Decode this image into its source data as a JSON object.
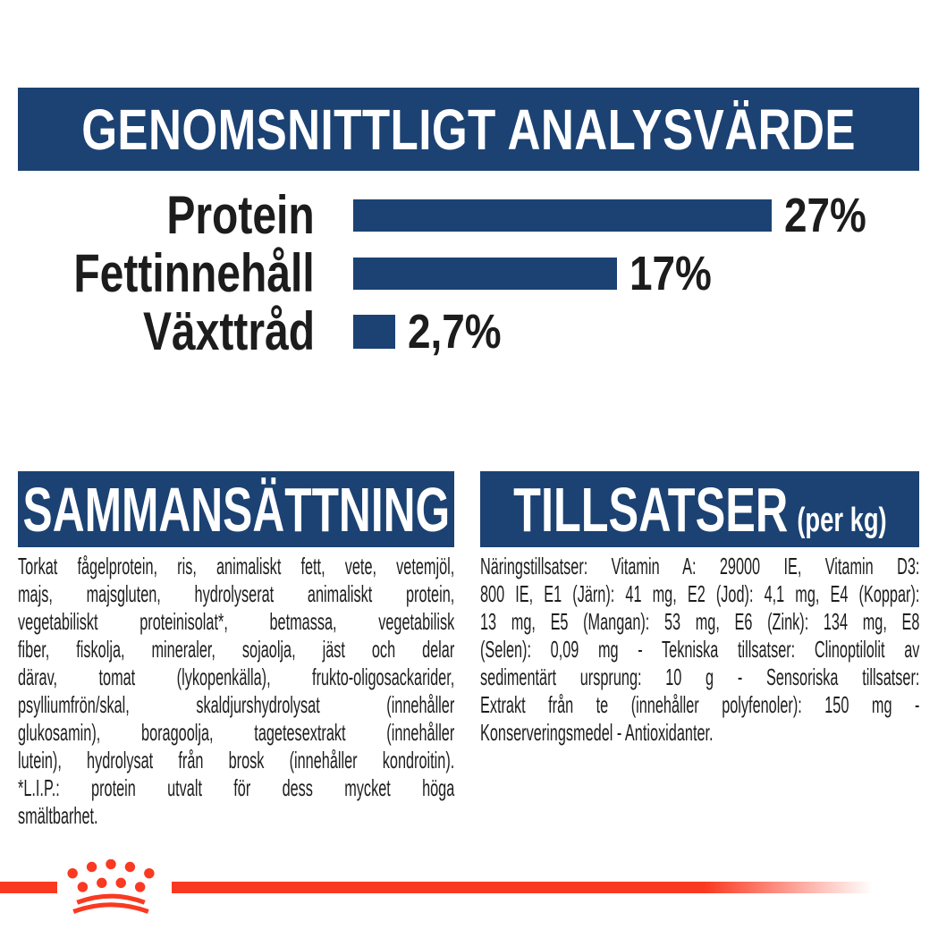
{
  "colors": {
    "navy": "#1B4273",
    "red": "#FA3921",
    "ink": "#1C1C1C"
  },
  "header": {
    "title": "GENOMSNITTLIGT ANALYSVÄRDE"
  },
  "chart_data": {
    "type": "bar",
    "orientation": "horizontal",
    "title": "GENOMSNITTLIGT ANALYSVÄRDE",
    "unit": "%",
    "categories": [
      "Protein",
      "Fettinnehåll",
      "Växttråd"
    ],
    "values": [
      27,
      17,
      2.7
    ],
    "value_labels": [
      "27%",
      "17%",
      "2,7%"
    ],
    "xlim": [
      0,
      27
    ],
    "grid": false,
    "legend": false,
    "bar_color": "#1B4273"
  },
  "sections": {
    "composition": {
      "title": "SAMMANSÄTTNING",
      "lines": [
        "Torkat fågelprotein, ris, animaliskt fett, vete, vetemjöl,",
        "majs, majsgluten, hydrolyserat animaliskt protein,",
        "vegetabiliskt proteinisolat*, betmassa, vegetabilisk",
        "fiber, fiskolja, mineraler, sojaolja, jäst och delar",
        "därav, tomat (lykopenkälla), frukto-oligosackarider,",
        "psylliumfrön/skal, skaldjurshydrolysat (innehåller",
        "glukosamin), boragoolja, tagetesextrakt (innehåller",
        "lutein), hydrolysat från brosk (innehåller kondroitin).",
        "*L.I.P.: protein utvalt för dess mycket höga",
        "smältbarhet."
      ]
    },
    "additives": {
      "title": "TILLSATSER",
      "title_suffix": "(per kg)",
      "lines": [
        "Näringstillsatser: Vitamin A: 29000 IE, Vitamin D3:",
        "800 IE, E1 (Järn): 41 mg, E2 (Jod): 4,1 mg, E4 (Koppar):",
        "13 mg, E5 (Mangan): 53 mg, E6 (Zink): 134 mg, E8",
        "(Selen): 0,09 mg - Tekniska tillsatser: Clinoptilolit av",
        "sedimentärt ursprung: 10 g - Sensoriska tillsatser:",
        "Extrakt från te (innehåller polyfenoler): 150 mg -",
        "Konserveringsmedel - Antioxidanter."
      ]
    }
  },
  "footer": {
    "logo_icon": "royal-canin-crown-icon"
  }
}
